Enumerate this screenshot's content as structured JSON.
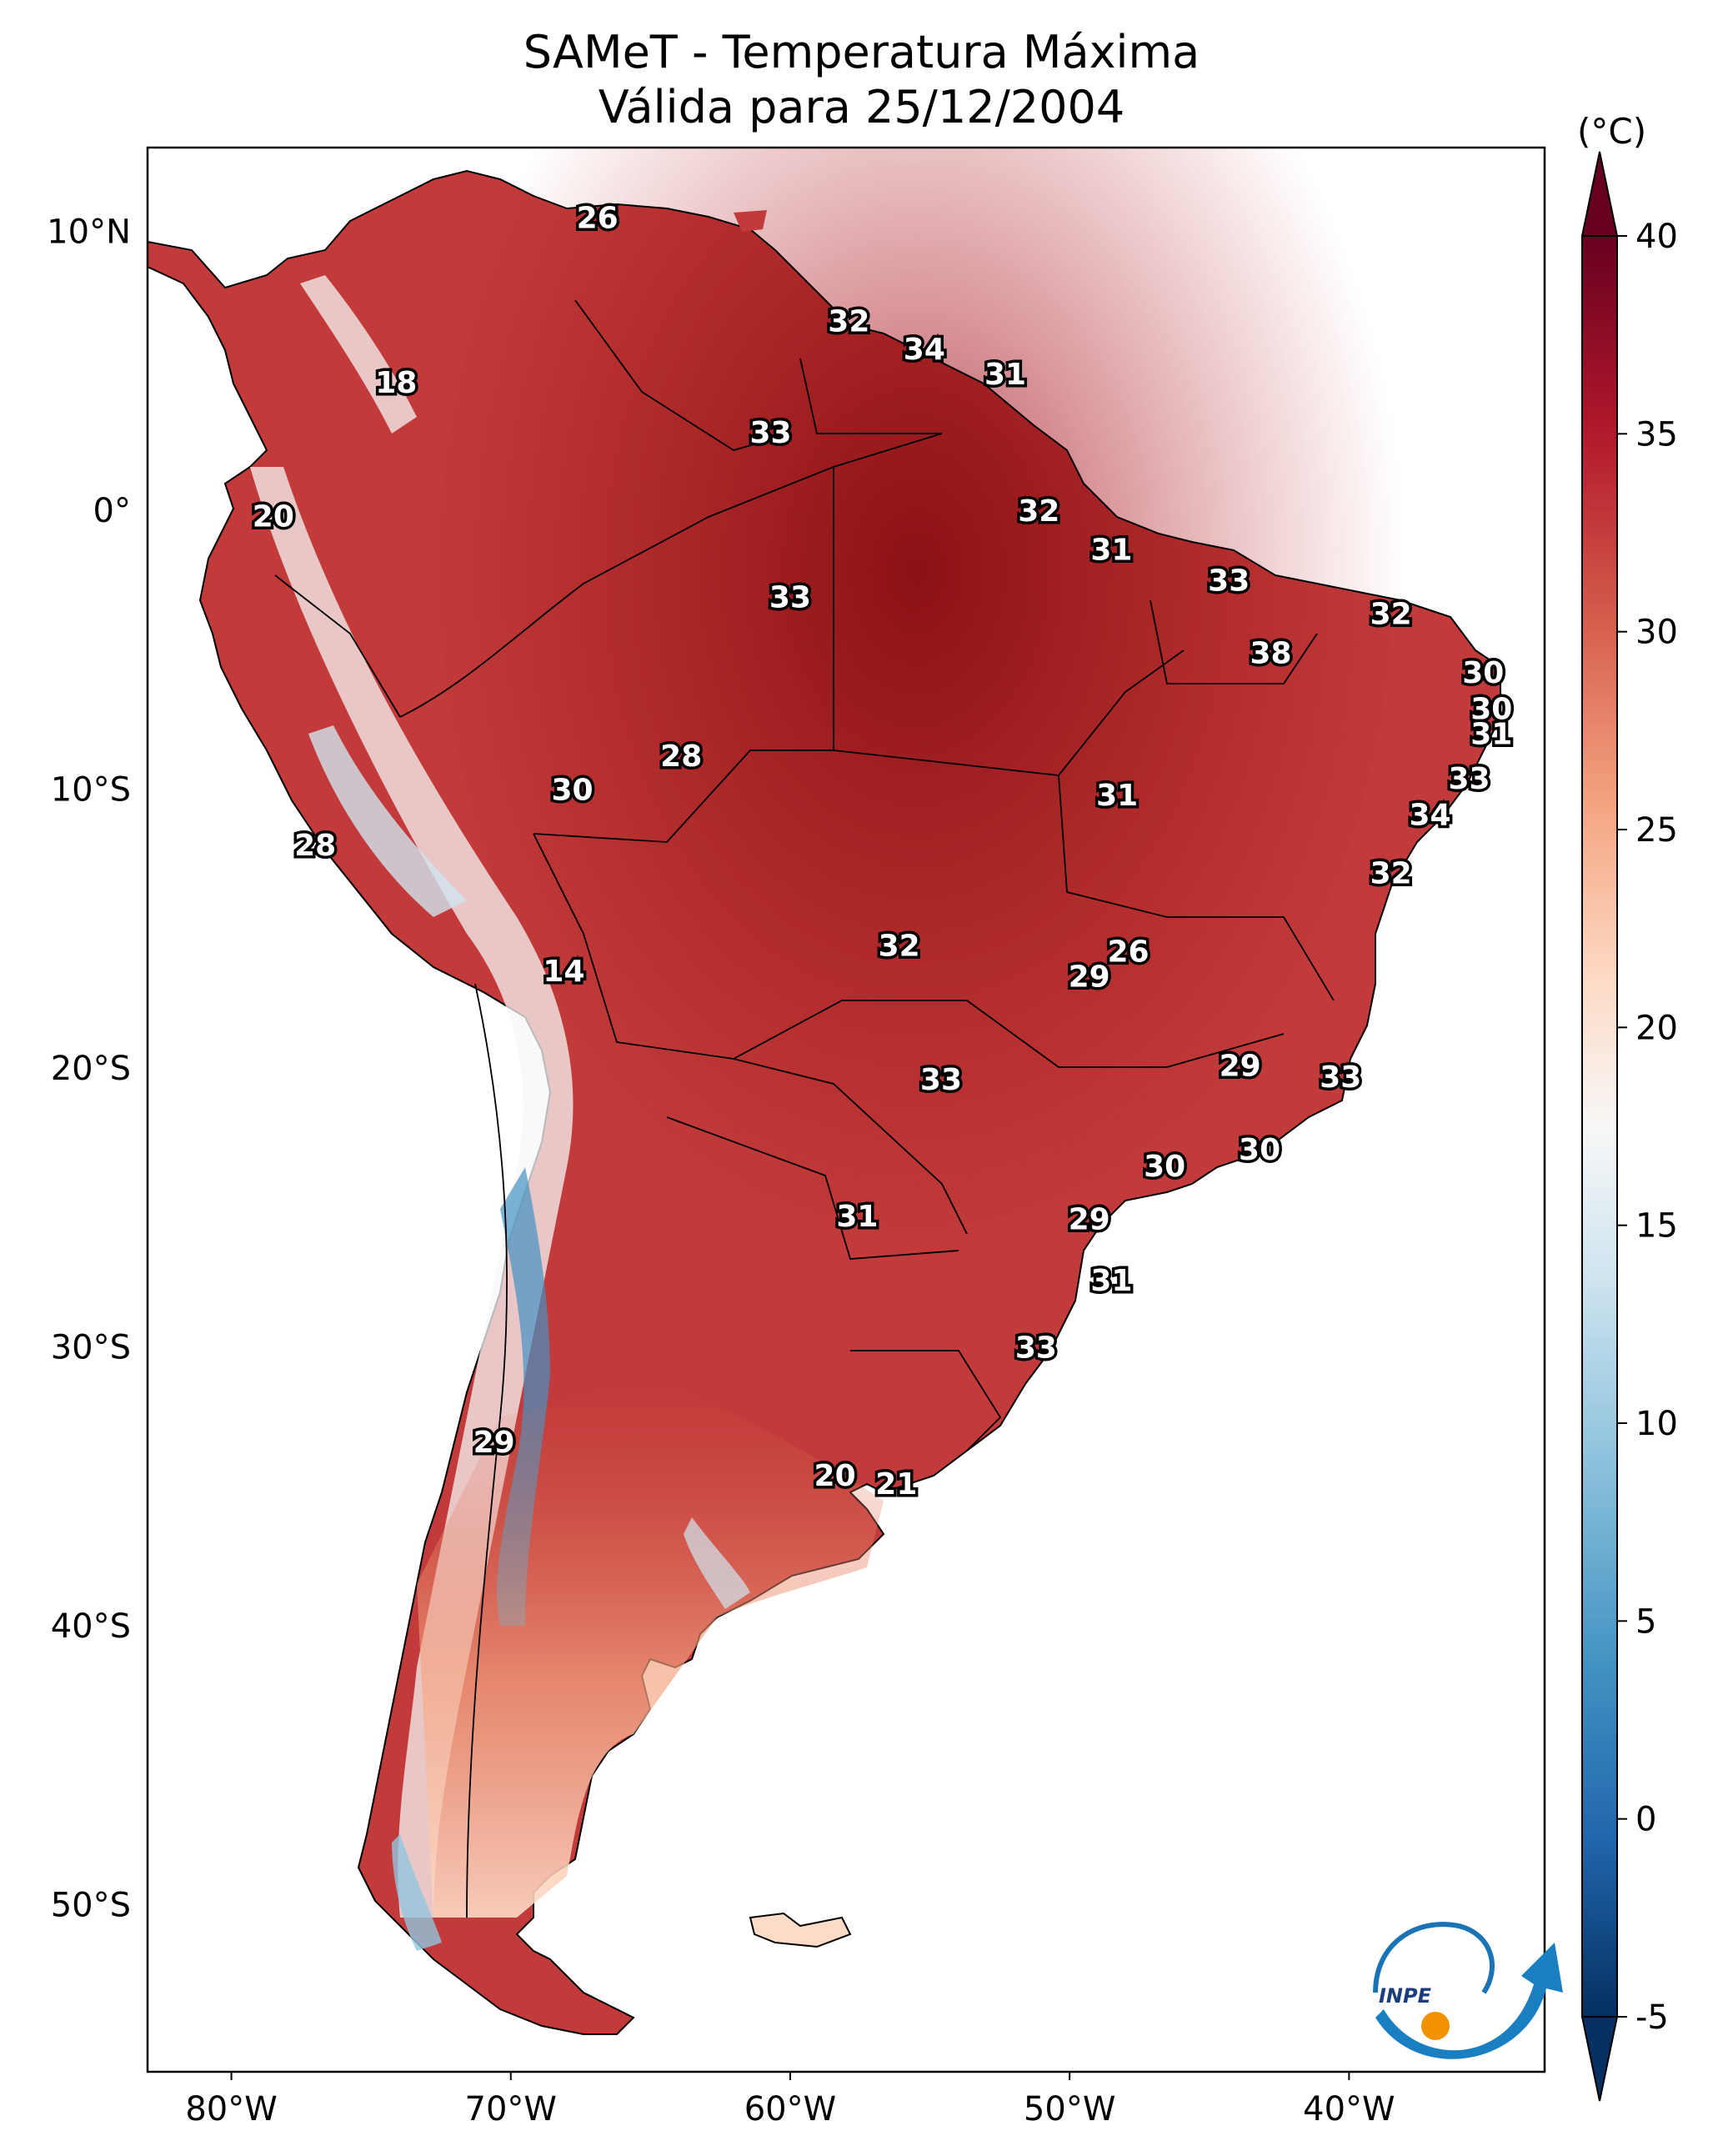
{
  "title": {
    "line1": "SAMeT - Temperatura Máxima",
    "line2": "Válida para 25/12/2004"
  },
  "map": {
    "lon_range": [
      -83,
      -33
    ],
    "lat_range": [
      -56,
      13
    ],
    "lon_ticks": [
      {
        "value": -80,
        "label": "80°W"
      },
      {
        "value": -70,
        "label": "70°W"
      },
      {
        "value": -60,
        "label": "60°W"
      },
      {
        "value": -50,
        "label": "50°W"
      },
      {
        "value": -40,
        "label": "40°W"
      }
    ],
    "lat_ticks": [
      {
        "value": 10,
        "label": "10°N"
      },
      {
        "value": 0,
        "label": "0°"
      },
      {
        "value": -10,
        "label": "10°S"
      },
      {
        "value": -20,
        "label": "20°S"
      },
      {
        "value": -30,
        "label": "30°S"
      },
      {
        "value": -40,
        "label": "40°S"
      },
      {
        "value": -50,
        "label": "50°S"
      }
    ],
    "point_labels": [
      {
        "lon": -66.9,
        "lat": 10.5,
        "value": "26"
      },
      {
        "lon": -74.1,
        "lat": 4.6,
        "value": "18"
      },
      {
        "lon": -78.5,
        "lat": -0.2,
        "value": "20"
      },
      {
        "lon": -57.9,
        "lat": 6.8,
        "value": "32"
      },
      {
        "lon": -55.2,
        "lat": 5.8,
        "value": "34"
      },
      {
        "lon": -52.3,
        "lat": 4.9,
        "value": "31"
      },
      {
        "lon": -60.7,
        "lat": 2.8,
        "value": "33"
      },
      {
        "lon": -51.1,
        "lat": 0.0,
        "value": "32"
      },
      {
        "lon": -48.5,
        "lat": -1.4,
        "value": "31"
      },
      {
        "lon": -44.3,
        "lat": -2.5,
        "value": "33"
      },
      {
        "lon": -60.0,
        "lat": -3.1,
        "value": "33"
      },
      {
        "lon": -38.5,
        "lat": -3.7,
        "value": "32"
      },
      {
        "lon": -42.8,
        "lat": -5.1,
        "value": "38"
      },
      {
        "lon": -35.2,
        "lat": -5.8,
        "value": "30"
      },
      {
        "lon": -34.9,
        "lat": -7.1,
        "value": "30"
      },
      {
        "lon": -34.9,
        "lat": -8.0,
        "value": "31"
      },
      {
        "lon": -63.9,
        "lat": -8.8,
        "value": "28"
      },
      {
        "lon": -67.8,
        "lat": -10.0,
        "value": "30"
      },
      {
        "lon": -48.3,
        "lat": -10.2,
        "value": "31"
      },
      {
        "lon": -35.7,
        "lat": -9.6,
        "value": "33"
      },
      {
        "lon": -37.1,
        "lat": -10.9,
        "value": "34"
      },
      {
        "lon": -38.5,
        "lat": -13.0,
        "value": "32"
      },
      {
        "lon": -77.0,
        "lat": -12.0,
        "value": "28"
      },
      {
        "lon": -56.1,
        "lat": -15.6,
        "value": "32"
      },
      {
        "lon": -47.9,
        "lat": -15.8,
        "value": "26"
      },
      {
        "lon": -49.3,
        "lat": -16.7,
        "value": "29"
      },
      {
        "lon": -68.1,
        "lat": -16.5,
        "value": "14"
      },
      {
        "lon": -43.9,
        "lat": -19.9,
        "value": "29"
      },
      {
        "lon": -40.3,
        "lat": -20.3,
        "value": "33"
      },
      {
        "lon": -54.6,
        "lat": -20.4,
        "value": "33"
      },
      {
        "lon": -43.2,
        "lat": -22.9,
        "value": "30"
      },
      {
        "lon": -46.6,
        "lat": -23.5,
        "value": "30"
      },
      {
        "lon": -57.6,
        "lat": -25.3,
        "value": "31"
      },
      {
        "lon": -49.3,
        "lat": -25.4,
        "value": "29"
      },
      {
        "lon": -48.5,
        "lat": -27.6,
        "value": "31"
      },
      {
        "lon": -51.2,
        "lat": -30.0,
        "value": "33"
      },
      {
        "lon": -70.6,
        "lat": -33.4,
        "value": "29"
      },
      {
        "lon": -58.4,
        "lat": -34.6,
        "value": "20"
      },
      {
        "lon": -56.2,
        "lat": -34.9,
        "value": "21"
      }
    ]
  },
  "colorbar": {
    "unit": "(°C)",
    "min": -5,
    "max": 40,
    "ticks": [
      {
        "value": 40,
        "label": "40"
      },
      {
        "value": 35,
        "label": "35"
      },
      {
        "value": 30,
        "label": "30"
      },
      {
        "value": 25,
        "label": "25"
      },
      {
        "value": 20,
        "label": "20"
      },
      {
        "value": 15,
        "label": "15"
      },
      {
        "value": 10,
        "label": "10"
      },
      {
        "value": 5,
        "label": "5"
      },
      {
        "value": 0,
        "label": "0"
      },
      {
        "value": -5,
        "label": "-5"
      }
    ],
    "colors": [
      "#053061",
      "#2166ac",
      "#4393c3",
      "#92c5de",
      "#d1e5f0",
      "#f7f7f7",
      "#fddbc7",
      "#f4a582",
      "#d6604d",
      "#b2182b",
      "#67001f"
    ]
  },
  "logo": {
    "text": "INPE"
  }
}
